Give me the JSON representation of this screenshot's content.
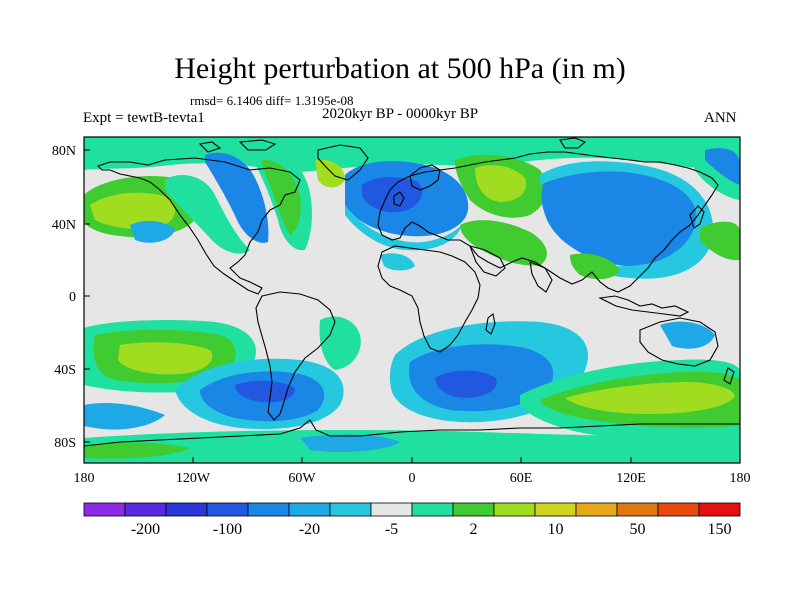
{
  "title": "Height perturbation at 500 hPa (in m)",
  "stats": "rmsd= 6.1406 diff= 1.3195e-08",
  "experiment": "Expt = tewtB-tevta1",
  "period": "2020kyr BP - 0000kyr BP",
  "season": "ANN",
  "lat_ticks": [
    "80N",
    "40N",
    "0",
    "40S",
    "80S"
  ],
  "lon_ticks": [
    "180",
    "120W",
    "60W",
    "0",
    "60E",
    "120E",
    "180"
  ],
  "colorbar": {
    "colors": [
      "#8c2ae6",
      "#5a2ae0",
      "#2a36d8",
      "#2258e0",
      "#1a86e6",
      "#1ea8e6",
      "#26c8e0",
      "#e6e6e6",
      "#20e0a0",
      "#40cc30",
      "#a0dc20",
      "#d0d420",
      "#e6a816",
      "#e07810",
      "#e84a0c",
      "#e61010"
    ],
    "labels": [
      "-200",
      "-100",
      "-20",
      "-5",
      "2",
      "10",
      "50",
      "150"
    ]
  },
  "field_colors": {
    "neutral": "#e6e6e6",
    "dark_blue": "#2258e0",
    "blue": "#1a86e6",
    "light_blue": "#1ea8e6",
    "cyan": "#26c8e0",
    "teal": "#20e0a0",
    "green": "#40cc30",
    "yellow_green": "#a0dc20",
    "coast": "#000000"
  }
}
